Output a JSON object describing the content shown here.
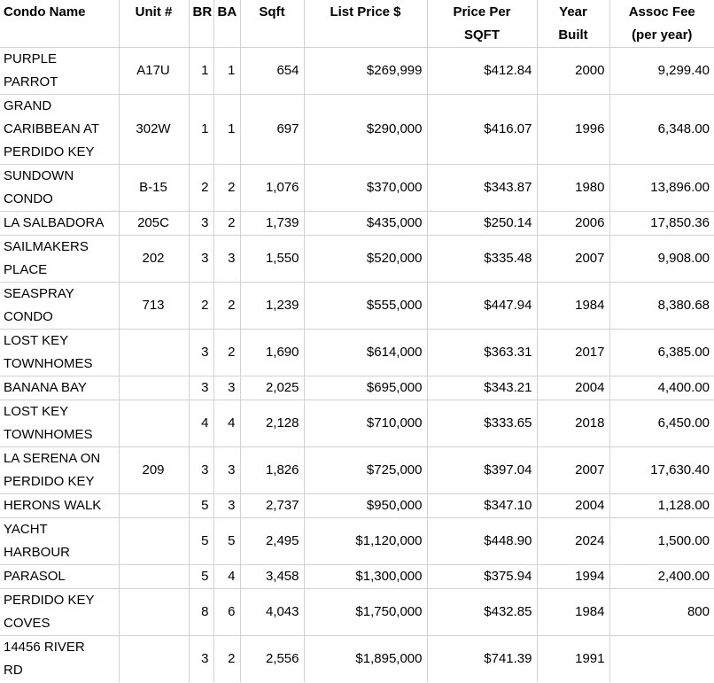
{
  "colors": {
    "grid_line": "#d2d2d2",
    "text": "#000000",
    "background": "#ffffff"
  },
  "table": {
    "columns": [
      {
        "key": "condo-name",
        "label": "Condo Name"
      },
      {
        "key": "unit",
        "label": "Unit #"
      },
      {
        "key": "br",
        "label": "BR"
      },
      {
        "key": "ba",
        "label": "BA"
      },
      {
        "key": "sqft",
        "label": "Sqft"
      },
      {
        "key": "list-price",
        "label": "List Price $"
      },
      {
        "key": "price-per-sqft",
        "label": "Price Per\nSQFT"
      },
      {
        "key": "year-built",
        "label": "Year\nBuilt"
      },
      {
        "key": "assoc-fee",
        "label": "Assoc Fee\n(per year)"
      }
    ],
    "rows": [
      [
        "PURPLE\nPARROT",
        "A17U",
        "1",
        "1",
        "654",
        "$269,999",
        "$412.84",
        "2000",
        "9,299.40"
      ],
      [
        "GRAND\nCARIBBEAN AT\nPERDIDO KEY",
        "302W",
        "1",
        "1",
        "697",
        "$290,000",
        "$416.07",
        "1996",
        "6,348.00"
      ],
      [
        "SUNDOWN\nCONDO",
        "B-15",
        "2",
        "2",
        "1,076",
        "$370,000",
        "$343.87",
        "1980",
        "13,896.00"
      ],
      [
        "LA SALBADORA",
        "205C",
        "3",
        "2",
        "1,739",
        "$435,000",
        "$250.14",
        "2006",
        "17,850.36"
      ],
      [
        "SAILMAKERS\nPLACE",
        "202",
        "3",
        "3",
        "1,550",
        "$520,000",
        "$335.48",
        "2007",
        "9,908.00"
      ],
      [
        "SEASPRAY\nCONDO",
        "713",
        "2",
        "2",
        "1,239",
        "$555,000",
        "$447.94",
        "1984",
        "8,380.68"
      ],
      [
        "LOST KEY\nTOWNHOMES",
        "",
        "3",
        "2",
        "1,690",
        "$614,000",
        "$363.31",
        "2017",
        "6,385.00"
      ],
      [
        "BANANA BAY",
        "",
        "3",
        "3",
        "2,025",
        "$695,000",
        "$343.21",
        "2004",
        "4,400.00"
      ],
      [
        "LOST KEY\nTOWNHOMES",
        "",
        "4",
        "4",
        "2,128",
        "$710,000",
        "$333.65",
        "2018",
        "6,450.00"
      ],
      [
        "LA SERENA ON\nPERDIDO KEY",
        "209",
        "3",
        "3",
        "1,826",
        "$725,000",
        "$397.04",
        "2007",
        "17,630.40"
      ],
      [
        "HERONS WALK",
        "",
        "5",
        "3",
        "2,737",
        "$950,000",
        "$347.10",
        "2004",
        "1,128.00"
      ],
      [
        "YACHT\nHARBOUR",
        "",
        "5",
        "5",
        "2,495",
        "$1,120,000",
        "$448.90",
        "2024",
        "1,500.00"
      ],
      [
        "PARASOL",
        "",
        "5",
        "4",
        "3,458",
        "$1,300,000",
        "$375.94",
        "1994",
        "2,400.00"
      ],
      [
        "PERDIDO KEY\nCOVES",
        "",
        "8",
        "6",
        "4,043",
        "$1,750,000",
        "$432.85",
        "1984",
        "800"
      ],
      [
        "14456 RIVER\nRD",
        "",
        "3",
        "2",
        "2,556",
        "$1,895,000",
        "$741.39",
        "1991",
        ""
      ]
    ]
  }
}
